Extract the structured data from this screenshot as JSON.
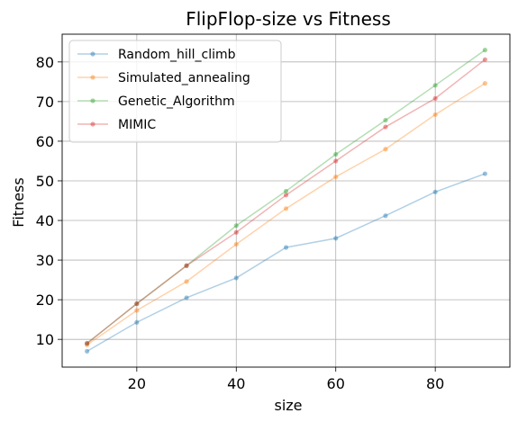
{
  "chart_data": {
    "type": "line",
    "title": "FlipFlop-size vs Fitness",
    "xlabel": "size",
    "ylabel": "Fitness",
    "x": [
      10,
      20,
      30,
      40,
      50,
      60,
      70,
      80,
      90
    ],
    "xlim": [
      5,
      95
    ],
    "ylim": [
      3,
      87
    ],
    "xticks": [
      20,
      40,
      60,
      80
    ],
    "yticks": [
      10,
      20,
      30,
      40,
      50,
      60,
      70,
      80
    ],
    "grid": true,
    "legend_position": "top-left",
    "series": [
      {
        "name": "Random_hill_climb",
        "color": "#1f77b4",
        "values": [
          7.0,
          14.3,
          20.5,
          25.5,
          33.2,
          35.5,
          41.2,
          47.2,
          51.8
        ]
      },
      {
        "name": "Simulated_annealing",
        "color": "#ff7f0e",
        "values": [
          8.6,
          17.3,
          24.6,
          34.0,
          43.0,
          51.0,
          58.0,
          66.7,
          74.6
        ]
      },
      {
        "name": "Genetic_Algorithm",
        "color": "#2ca02c",
        "values": [
          9.0,
          19.0,
          28.6,
          38.7,
          47.4,
          56.7,
          65.3,
          74.1,
          83.0
        ]
      },
      {
        "name": "MIMIC",
        "color": "#d62728",
        "values": [
          9.0,
          19.0,
          28.6,
          37.0,
          46.4,
          55.0,
          63.6,
          70.8,
          80.6
        ]
      }
    ]
  }
}
